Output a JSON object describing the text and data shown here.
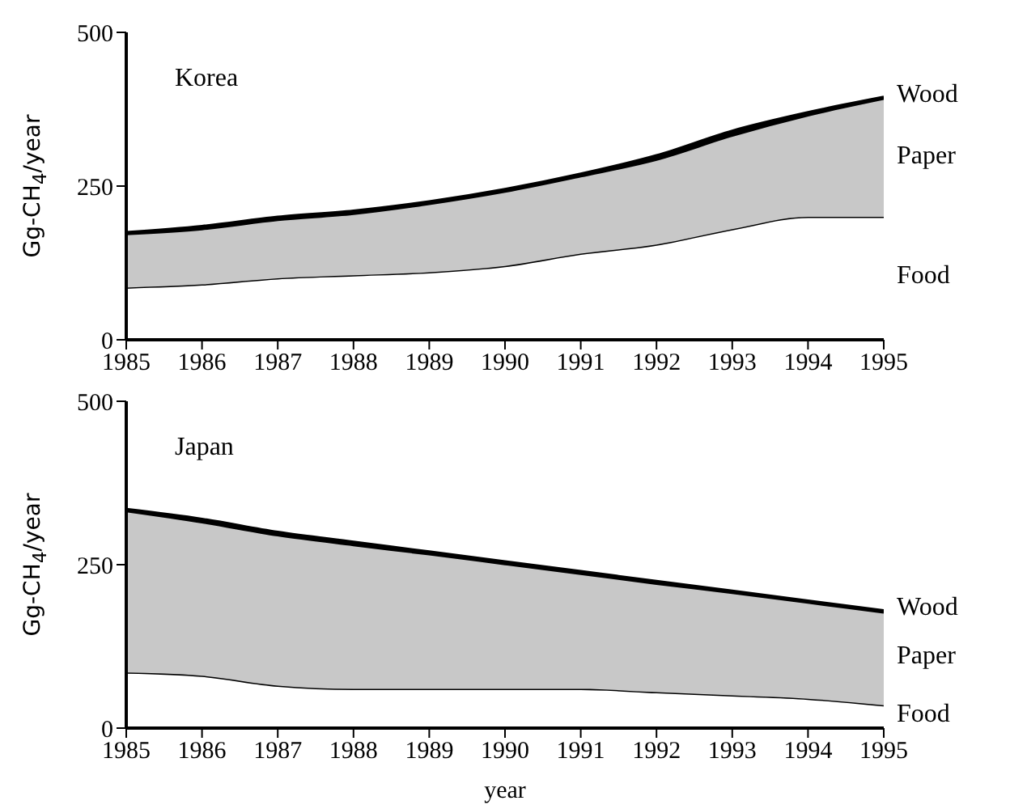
{
  "chart_data": [
    {
      "type": "area",
      "title": "Korea",
      "ylabel": "Gg-CH$_{4}$/year",
      "stacked": true,
      "legend": false,
      "grid": false,
      "x": [
        1985,
        1986,
        1987,
        1988,
        1989,
        1990,
        1991,
        1992,
        1993,
        1994,
        1995
      ],
      "xlim": [
        1985,
        1995
      ],
      "xticks": [
        1985,
        1986,
        1987,
        1988,
        1989,
        1990,
        1991,
        1992,
        1993,
        1994,
        1995
      ],
      "ylim": [
        0,
        500
      ],
      "yticks": [
        0,
        250,
        500
      ],
      "series": [
        {
          "name": "Food",
          "color": "#ffffff",
          "values": [
            85,
            90,
            100,
            105,
            110,
            120,
            140,
            155,
            180,
            200,
            200
          ]
        },
        {
          "name": "Paper",
          "color": "#c8c8c8",
          "values": [
            87,
            90,
            95,
            100,
            111,
            121,
            126,
            138,
            152,
            165,
            192
          ]
        },
        {
          "name": "Wood",
          "color": "#000000",
          "values": [
            3,
            5,
            5,
            5,
            4,
            4,
            4,
            7,
            8,
            5,
            3
          ]
        }
      ]
    },
    {
      "type": "area",
      "title": "Japan",
      "ylabel": "Gg-CH$_{4}$/year",
      "xlabel": "year",
      "stacked": true,
      "legend": false,
      "grid": false,
      "x": [
        1985,
        1986,
        1987,
        1988,
        1989,
        1990,
        1991,
        1992,
        1993,
        1994,
        1995
      ],
      "xlim": [
        1985,
        1995
      ],
      "xticks": [
        1985,
        1986,
        1987,
        1988,
        1989,
        1990,
        1991,
        1992,
        1993,
        1994,
        1995
      ],
      "ylim": [
        0,
        500
      ],
      "yticks": [
        0,
        250,
        500
      ],
      "series": [
        {
          "name": "Food",
          "color": "#ffffff",
          "values": [
            85,
            80,
            65,
            60,
            60,
            60,
            60,
            55,
            50,
            45,
            35
          ]
        },
        {
          "name": "Paper",
          "color": "#c8c8c8",
          "values": [
            247,
            235,
            230,
            220,
            206,
            191,
            176,
            166,
            157,
            147,
            142
          ]
        },
        {
          "name": "Wood",
          "color": "#000000",
          "values": [
            3,
            5,
            5,
            5,
            4,
            4,
            4,
            4,
            3,
            3,
            3
          ]
        }
      ]
    }
  ]
}
